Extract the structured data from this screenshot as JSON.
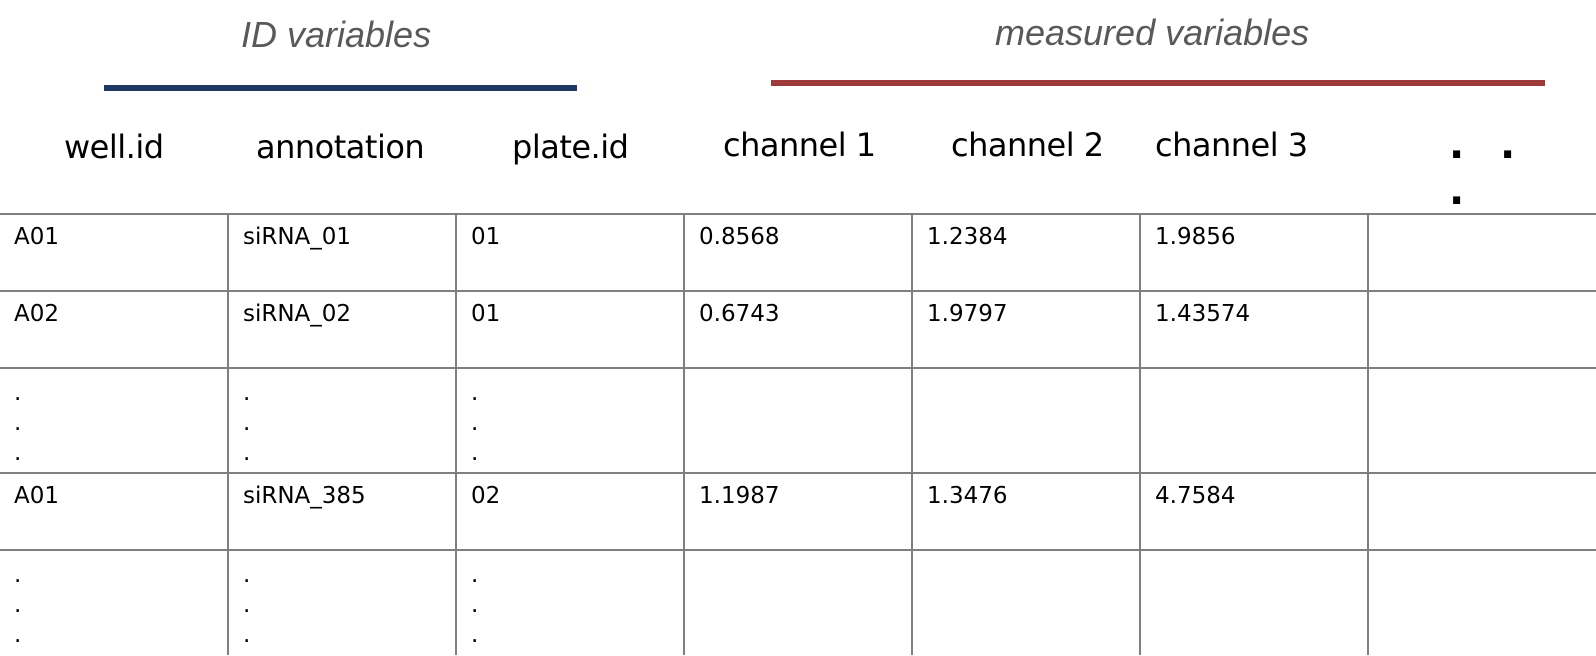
{
  "groups": {
    "id": {
      "title": "ID variables",
      "color": "#1f3864"
    },
    "measured": {
      "title": "measured variables",
      "color": "#9e3a3a"
    }
  },
  "headers": {
    "well_id": "well.id",
    "annotation": "annotation",
    "plate_id": "plate.id",
    "channel1": "channel 1",
    "channel2": "channel 2",
    "channel3": "channel 3",
    "more": "."
  },
  "rows": [
    {
      "well_id": "A01",
      "annotation": "siRNA_01",
      "plate_id": "01",
      "channel1": "0.8568",
      "channel2": "1.2384",
      "channel3": "1.9856"
    },
    {
      "well_id": "A02",
      "annotation": "siRNA_02",
      "plate_id": "01",
      "channel1": "0.6743",
      "channel2": "1.9797",
      "channel3": "1.43574"
    },
    {
      "dots": "."
    },
    {
      "well_id": "A01",
      "annotation": "siRNA_385",
      "plate_id": "02",
      "channel1": "1.1987",
      "channel2": "1.3476",
      "channel3": "4.7584"
    },
    {
      "dots": "."
    }
  ]
}
